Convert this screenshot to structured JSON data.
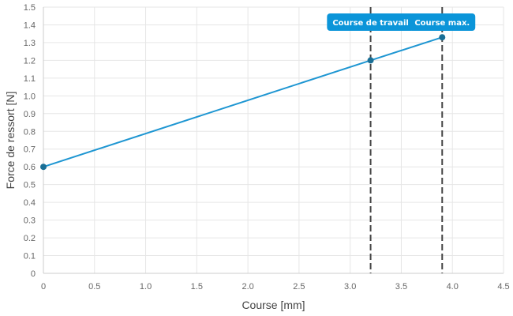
{
  "chart_data": {
    "type": "line",
    "xlabel": "Course [mm]",
    "ylabel": "Force de ressort [N]",
    "xlim": [
      0,
      4.5
    ],
    "ylim": [
      0,
      1.5
    ],
    "x_ticks": [
      "0",
      "0.5",
      "1.0",
      "1.5",
      "2.0",
      "2.5",
      "3.0",
      "3.5",
      "4.0",
      "4.5"
    ],
    "y_ticks": [
      "0",
      "0.1",
      "0.2",
      "0.3",
      "0.4",
      "0.5",
      "0.6",
      "0.7",
      "0.8",
      "0.9",
      "1.0",
      "1.1",
      "1.2",
      "1.3",
      "1.4",
      "1.5"
    ],
    "grid": true,
    "series": [
      {
        "x": [
          0,
          3.2,
          3.9
        ],
        "y": [
          0.6,
          1.2,
          1.33
        ]
      }
    ],
    "annotations": [
      {
        "label": "Course de travail",
        "x": 3.2,
        "style": "dashed-vertical-line"
      },
      {
        "label": "Course max.",
        "x": 3.9,
        "style": "dashed-vertical-line"
      }
    ],
    "colors": {
      "series": "#1e96d2",
      "marker": "#1a6f96",
      "annotation_bg": "#0b95d9",
      "annotation_line": "#444444",
      "grid": "#e6e6e6",
      "axis": "#cccccc"
    }
  }
}
